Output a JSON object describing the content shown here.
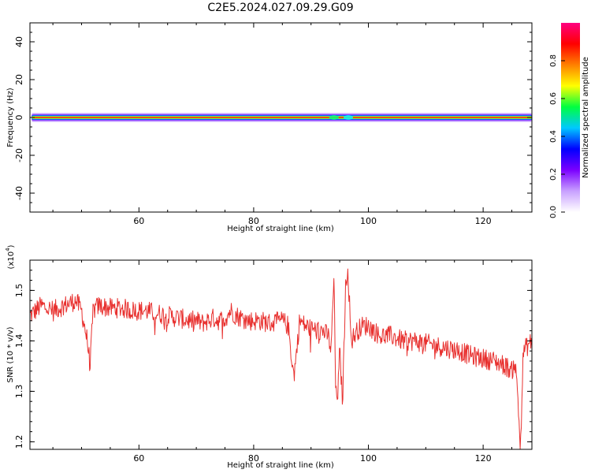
{
  "chart_data": [
    {
      "type": "heatmap",
      "title": "C2E5.2024.027.09.29.G09",
      "xlabel": "Height of straight line (km)",
      "ylabel": "Frequency (Hz)",
      "xlim": [
        41,
        128.5
      ],
      "ylim": [
        -50,
        50
      ],
      "xticks": [
        60,
        80,
        100,
        120
      ],
      "yticks": [
        40,
        20,
        0,
        -20,
        -40
      ],
      "band_center_hz": 0,
      "band_halfwidth_hz": 2.5,
      "colorbar": {
        "label": "Normalized spectral amplitude",
        "range": [
          0.0,
          1.0
        ],
        "ticks": [
          "0.0",
          "0.2",
          "0.4",
          "0.6",
          "0.8"
        ],
        "colors": [
          "#ffffff",
          "#c8a0ff",
          "#7b00ff",
          "#0000ff",
          "#00c8ff",
          "#00ff40",
          "#ffff00",
          "#ff8000",
          "#ff0000",
          "#ff0080"
        ]
      }
    },
    {
      "type": "line",
      "xlabel": "Height of straight line (km)",
      "ylabel": "SNR (10 * v/v)",
      "y_multiplier_label": "(x10",
      "y_multiplier_exp": "4",
      "xlim": [
        41,
        128.5
      ],
      "ylim": [
        1.185,
        1.56
      ],
      "xticks": [
        60,
        80,
        100,
        120
      ],
      "yticks": [
        1.2,
        1.3,
        1.4,
        1.5
      ],
      "line_color": "#e8312f",
      "x": [
        41,
        43,
        45,
        47,
        49,
        50,
        51,
        51.5,
        52,
        53,
        55,
        57,
        59,
        61,
        63,
        65,
        67,
        69,
        70,
        71,
        72,
        73,
        74,
        75,
        76,
        77,
        79,
        81,
        83,
        85,
        86,
        87,
        87.5,
        88,
        89,
        91,
        92,
        93,
        93.5,
        94,
        94.3,
        94.7,
        95,
        95.5,
        96,
        96.4,
        97,
        98,
        99,
        100,
        102,
        104,
        106,
        108,
        110,
        112,
        114,
        116,
        118,
        120,
        122,
        123,
        124,
        125,
        125.5,
        126,
        126.5,
        127,
        128.5
      ],
      "y": [
        1.45,
        1.47,
        1.46,
        1.47,
        1.48,
        1.46,
        1.4,
        1.35,
        1.46,
        1.47,
        1.465,
        1.465,
        1.46,
        1.46,
        1.455,
        1.45,
        1.445,
        1.44,
        1.44,
        1.435,
        1.44,
        1.445,
        1.44,
        1.445,
        1.46,
        1.45,
        1.44,
        1.44,
        1.435,
        1.44,
        1.43,
        1.33,
        1.38,
        1.44,
        1.43,
        1.42,
        1.42,
        1.41,
        1.38,
        1.53,
        1.29,
        1.3,
        1.38,
        1.28,
        1.5,
        1.55,
        1.4,
        1.42,
        1.43,
        1.43,
        1.41,
        1.41,
        1.4,
        1.4,
        1.395,
        1.39,
        1.385,
        1.38,
        1.37,
        1.365,
        1.36,
        1.355,
        1.35,
        1.34,
        1.36,
        1.3,
        1.19,
        1.38,
        1.4
      ]
    }
  ]
}
